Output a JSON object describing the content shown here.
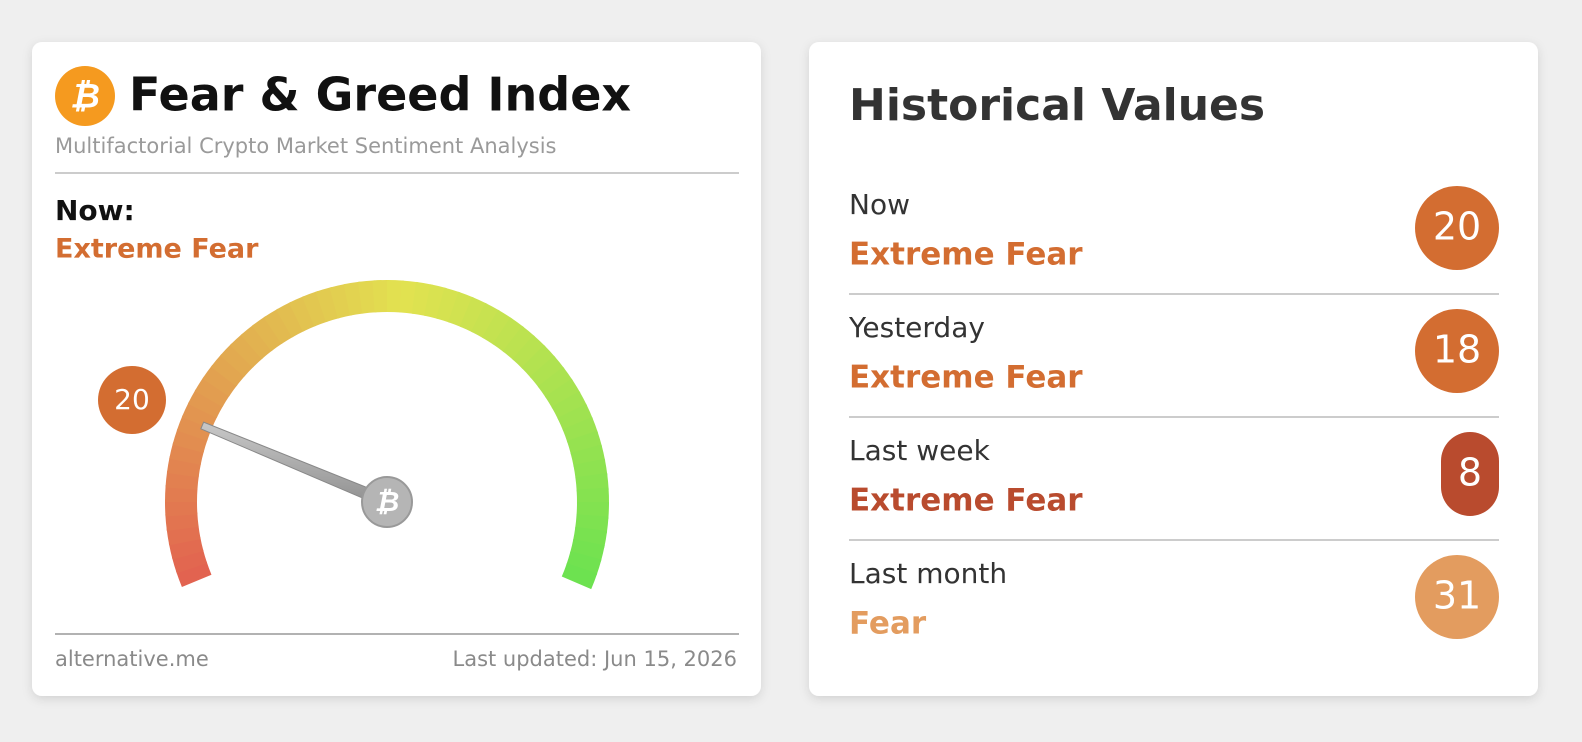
{
  "gauge_card": {
    "title": "Fear & Greed Index",
    "subtitle": "Multifactorial Crypto Market Sentiment Analysis",
    "now_label": "Now:",
    "classification": "Extreme Fear",
    "value": 20,
    "color": "#d36d31",
    "gauge_range": [
      0,
      100
    ],
    "source": "alternative.me",
    "last_updated": "Last updated: Jun 15, 2026"
  },
  "history": {
    "title": "Historical Values",
    "rows": [
      {
        "period": "Now",
        "classification": "Extreme Fear",
        "value": 20,
        "color": "#d36d31"
      },
      {
        "period": "Yesterday",
        "classification": "Extreme Fear",
        "value": 18,
        "color": "#d36d31"
      },
      {
        "period": "Last week",
        "classification": "Extreme Fear",
        "value": 8,
        "color": "#b94b2e"
      },
      {
        "period": "Last month",
        "classification": "Fear",
        "value": 31,
        "color": "#e39c5f"
      }
    ]
  }
}
